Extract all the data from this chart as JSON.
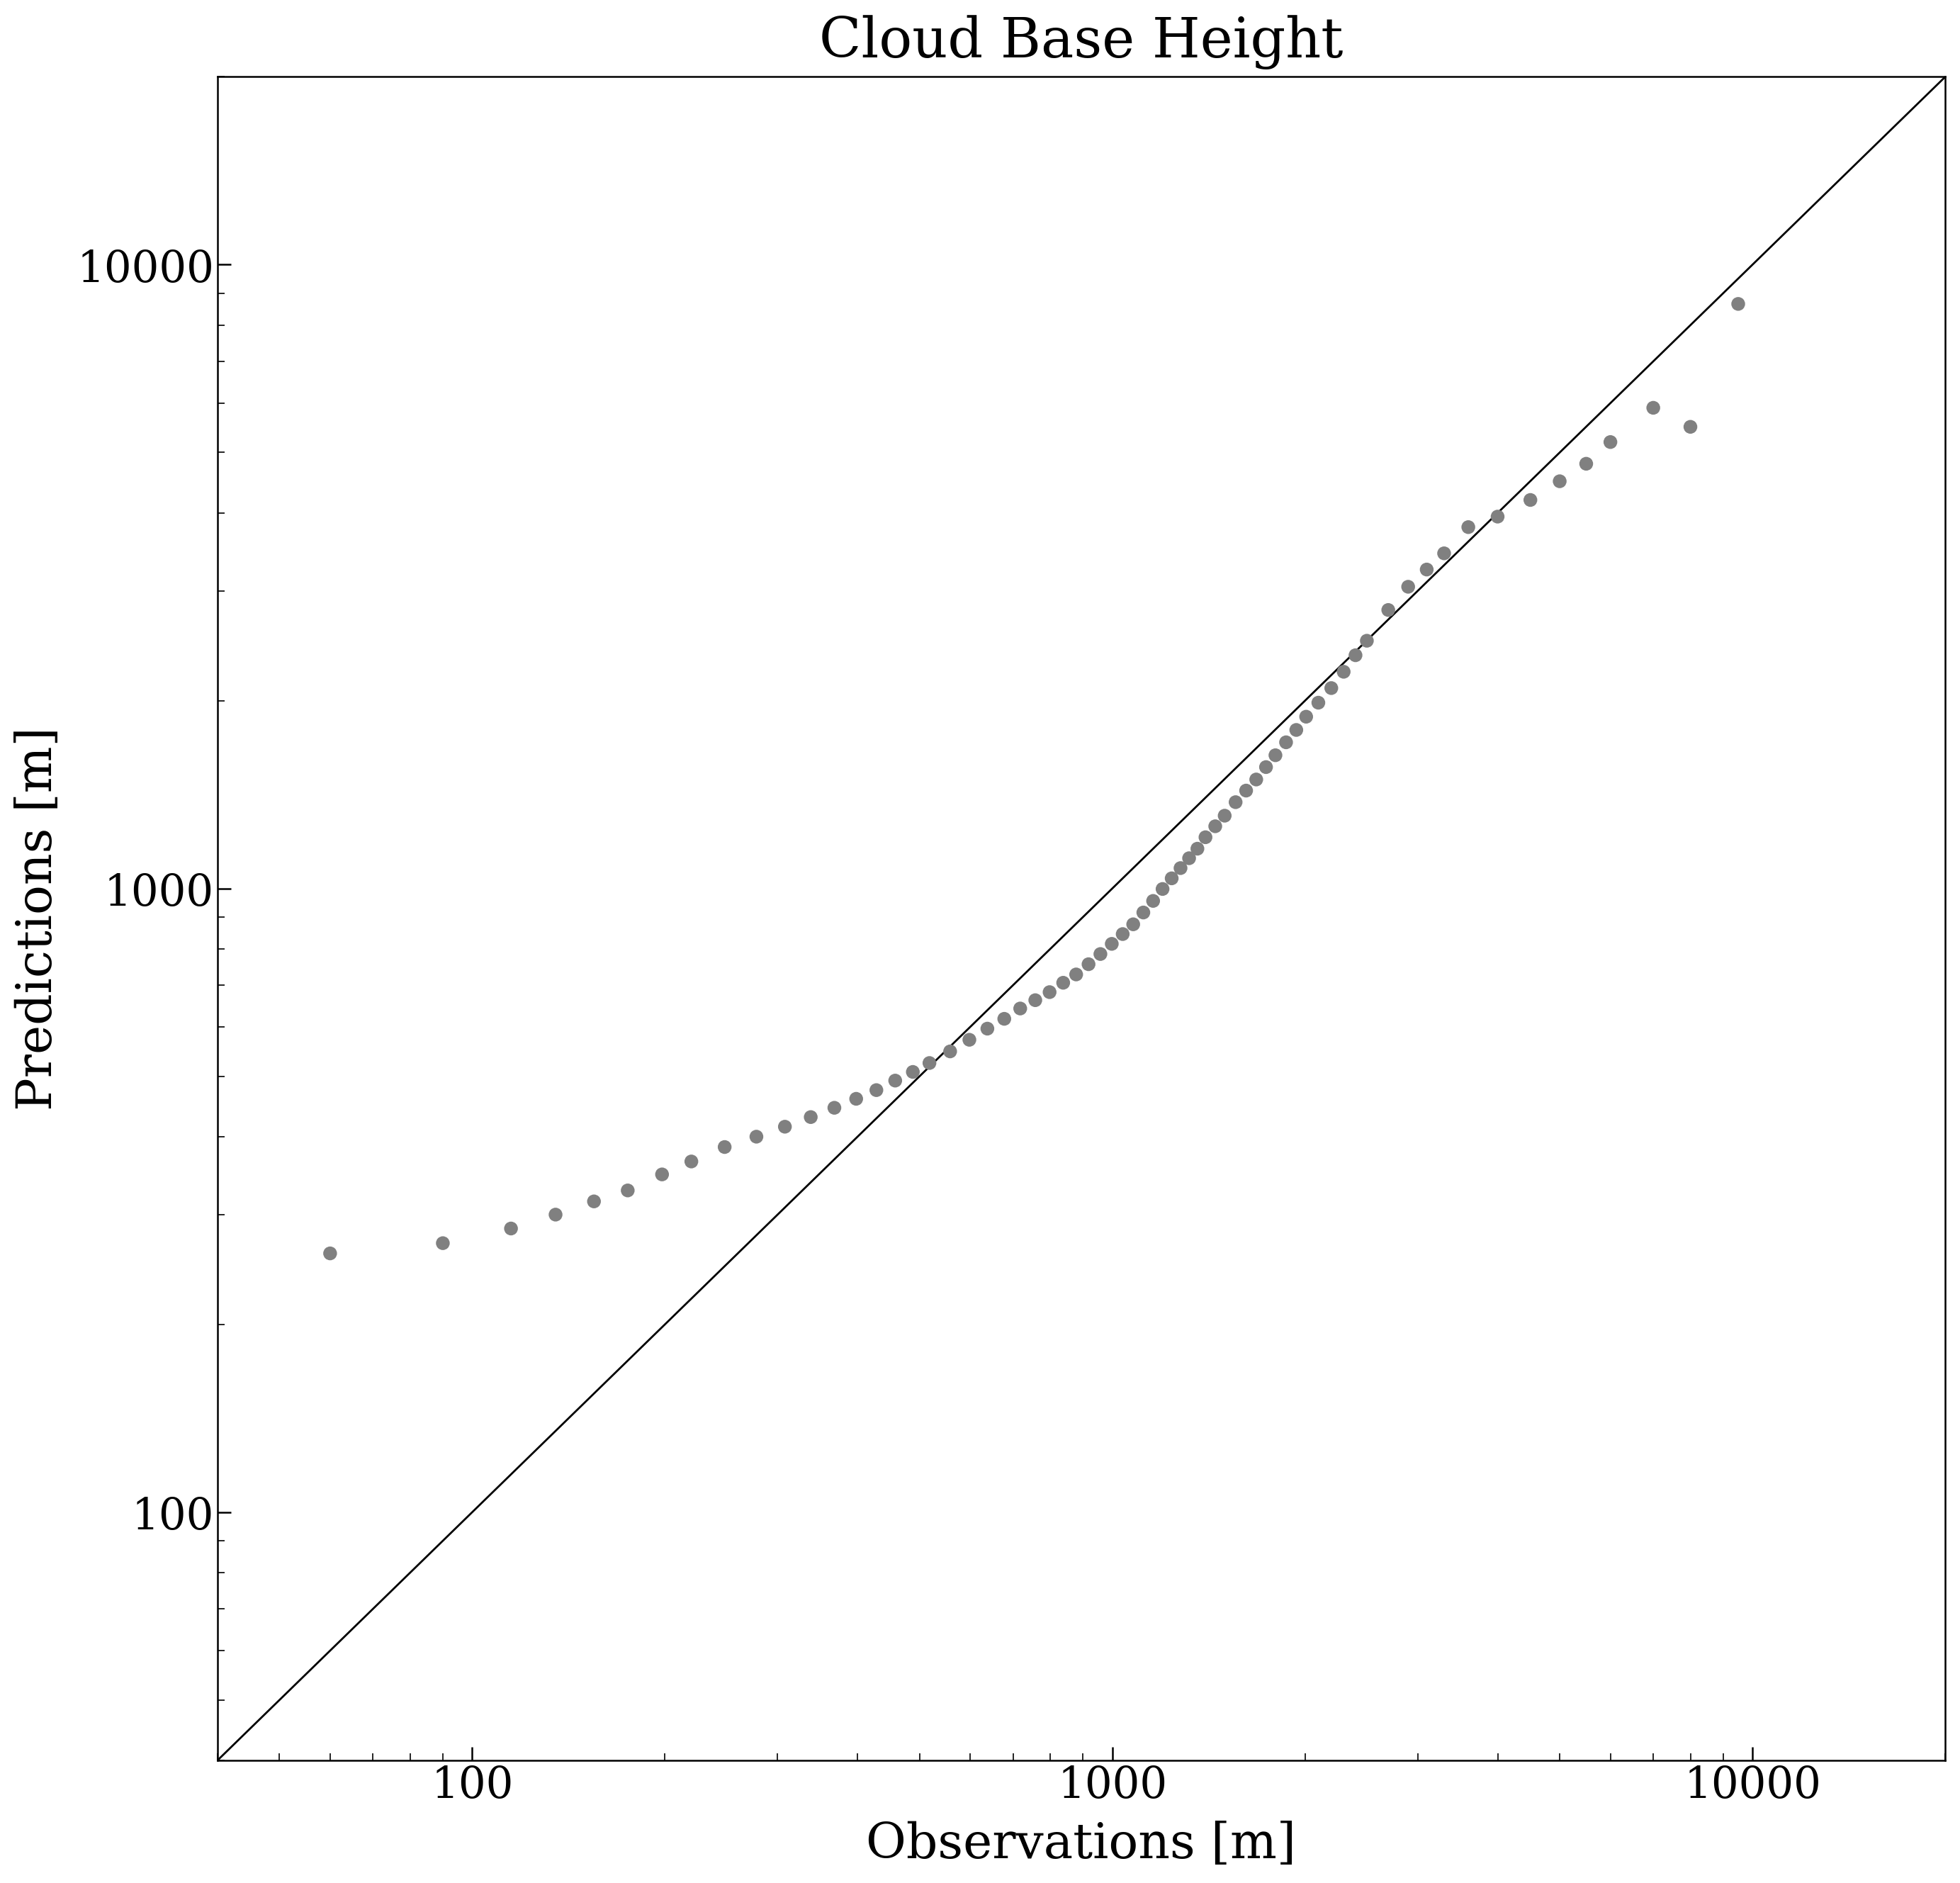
{
  "title": "Cloud Base Height",
  "xlabel": "Observations [m]",
  "ylabel": "Predictions [m]",
  "dot_color": "#808080",
  "line_color": "#000000",
  "xlim": [
    40,
    20000
  ],
  "ylim": [
    40,
    20000
  ],
  "marker_size": 14,
  "title_fontsize": 56,
  "label_fontsize": 50,
  "tick_fontsize": 44,
  "line_width": 2.0,
  "scatter_x": [
    60,
    90,
    115,
    135,
    155,
    175,
    198,
    220,
    248,
    278,
    308,
    338,
    368,
    398,
    428,
    458,
    488,
    518,
    558,
    598,
    638,
    678,
    718,
    758,
    798,
    838,
    878,
    918,
    958,
    998,
    1038,
    1078,
    1118,
    1158,
    1198,
    1238,
    1278,
    1318,
    1358,
    1398,
    1448,
    1498,
    1558,
    1618,
    1678,
    1738,
    1798,
    1868,
    1938,
    2008,
    2098,
    2198,
    2298,
    2398,
    2498,
    2698,
    2898,
    3098,
    3298,
    3598,
    3998,
    4498,
    4998,
    5498,
    5998,
    6998,
    7998,
    9498
  ],
  "scatter_y": [
    260,
    270,
    285,
    300,
    315,
    328,
    348,
    365,
    385,
    400,
    415,
    430,
    445,
    460,
    475,
    492,
    508,
    525,
    548,
    572,
    596,
    618,
    642,
    662,
    682,
    706,
    728,
    756,
    785,
    815,
    845,
    876,
    915,
    955,
    998,
    1038,
    1078,
    1118,
    1158,
    1208,
    1258,
    1308,
    1375,
    1435,
    1495,
    1565,
    1635,
    1715,
    1795,
    1885,
    1985,
    2095,
    2225,
    2365,
    2495,
    2795,
    3045,
    3245,
    3445,
    3795,
    3945,
    4195,
    4495,
    4795,
    5195,
    5895,
    5495,
    8650
  ]
}
